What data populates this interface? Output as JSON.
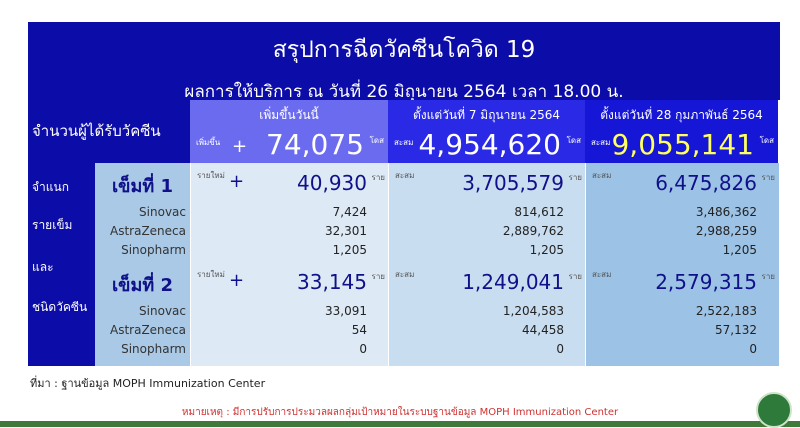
{
  "title": "สรุปการฉีดวัคซีนโควิด 19",
  "subtitle": "ผลการให้บริการ ณ วันที่ 26 มิถุนายน 2564 เวลา 18.00 น.",
  "row_header": "จำนวนผู้ได้รับวัคซีน",
  "side_labels": [
    "จำแนก",
    "รายเข็ม",
    "และ",
    "ชนิดวัคซีน"
  ],
  "columns": [
    {
      "label": "เพิ่มขึ้นวันนี้",
      "prefix": "เพิ่มขึ้น",
      "plus": "+",
      "total": "74,075",
      "unit": "โดส",
      "color": "#6b6bf0"
    },
    {
      "label": "ตั้งแต่วันที่ 7 มิถุนายน 2564",
      "prefix": "สะสม",
      "total": "4,954,620",
      "unit": "โดส",
      "color": "#2a2ae6"
    },
    {
      "label": "ตั้งแต่วันที่ 28 กุมภาพันธ์ 2564",
      "prefix": "สะสม",
      "total": "9,055,141",
      "unit": "โดส",
      "color": "#1616d6"
    }
  ],
  "doses": [
    {
      "name": "เข็มที่ 1",
      "vaccines": [
        "Sinovac",
        "AstraZeneca",
        "Sinopharm"
      ],
      "cols": [
        {
          "prefix": "รายใหม่",
          "plus": "+",
          "total": "40,930",
          "unit": "ราย",
          "values": [
            "7,424",
            "32,301",
            "1,205"
          ]
        },
        {
          "prefix": "สะสม",
          "total": "3,705,579",
          "unit": "ราย",
          "values": [
            "814,612",
            "2,889,762",
            "1,205"
          ]
        },
        {
          "prefix": "สะสม",
          "total": "6,475,826",
          "unit": "ราย",
          "values": [
            "3,486,362",
            "2,988,259",
            "1,205"
          ]
        }
      ]
    },
    {
      "name": "เข็มที่ 2",
      "vaccines": [
        "Sinovac",
        "AstraZeneca",
        "Sinopharm"
      ],
      "cols": [
        {
          "prefix": "รายใหม่",
          "plus": "+",
          "total": "33,145",
          "unit": "ราย",
          "values": [
            "33,091",
            "54",
            "0"
          ]
        },
        {
          "prefix": "สะสม",
          "total": "1,249,041",
          "unit": "ราย",
          "values": [
            "1,204,583",
            "44,458",
            "0"
          ]
        },
        {
          "prefix": "สะสม",
          "total": "2,579,315",
          "unit": "ราย",
          "values": [
            "2,522,183",
            "57,132",
            "0"
          ]
        }
      ]
    }
  ],
  "source": "ที่มา : ฐานข้อมูล MOPH  Immunization Center",
  "note": "หมายเหตุ :  มีการปรับการประมวลผลกลุ่มเป้าหมายในระบบฐานข้อมูล MOPH Immunization Center"
}
